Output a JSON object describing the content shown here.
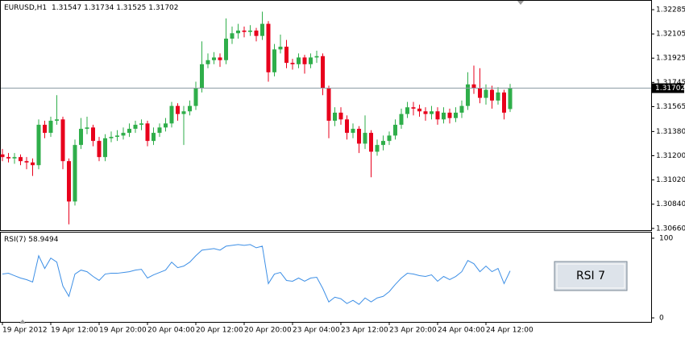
{
  "chart_data": {
    "type": "candlestick",
    "title": "EURUSD,H1",
    "categories": [
      "19 Apr 2012",
      null,
      null,
      null,
      null,
      null,
      null,
      null,
      "19 Apr 12:00",
      null,
      null,
      null,
      null,
      null,
      null,
      null,
      "19 Apr 20:00",
      null,
      null,
      null,
      null,
      null,
      null,
      null,
      "20 Apr 04:00",
      null,
      null,
      null,
      null,
      null,
      null,
      null,
      "20 Apr 12:00",
      null,
      null,
      null,
      null,
      null,
      null,
      null,
      "20 Apr 20:00",
      null,
      null,
      null,
      null,
      null,
      null,
      null,
      "23 Apr 04:00",
      null,
      null,
      null,
      null,
      null,
      null,
      null,
      "23 Apr 12:00",
      null,
      null,
      null,
      null,
      null,
      null,
      null,
      "23 Apr 20:00",
      null,
      null,
      null,
      null,
      null,
      null,
      null,
      "24 Apr 04:00",
      null,
      null,
      null,
      null,
      null,
      null,
      null,
      "24 Apr 12:00",
      null,
      null,
      null,
      null
    ],
    "open": [
      1.3121,
      1.3119,
      1.3118,
      1.3119,
      1.3116,
      1.3115,
      1.3113,
      1.3143,
      1.3137,
      1.3146,
      1.3147,
      1.3116,
      1.3086,
      1.3128,
      1.314,
      1.3141,
      1.3131,
      1.3119,
      1.3133,
      1.3134,
      1.3135,
      1.3137,
      1.314,
      1.3143,
      1.3144,
      1.3131,
      1.3137,
      1.3141,
      1.3144,
      1.3157,
      1.3151,
      1.3153,
      1.3157,
      1.317,
      1.3188,
      1.3191,
      1.3193,
      1.3191,
      1.3207,
      1.3211,
      1.3213,
      1.3212,
      1.3213,
      1.3209,
      1.3218,
      1.3182,
      1.3199,
      1.3201,
      1.3189,
      1.3188,
      1.3193,
      1.3188,
      1.3193,
      1.3194,
      1.317,
      1.3146,
      1.3152,
      1.3147,
      1.3137,
      1.314,
      1.3129,
      1.3137,
      1.3123,
      1.3128,
      1.3131,
      1.3135,
      1.3143,
      1.3151,
      1.3156,
      1.3155,
      1.3153,
      1.3151,
      1.3153,
      1.3147,
      1.3152,
      1.3148,
      1.3152,
      1.3157,
      1.3173,
      1.317,
      1.3163,
      1.3169,
      1.3161,
      1.3167,
      1.31547
    ],
    "high": [
      1.3125,
      1.3122,
      1.3122,
      1.3121,
      1.3119,
      1.3118,
      1.3147,
      1.3146,
      1.3149,
      1.3165,
      1.3149,
      1.3118,
      1.3132,
      1.3148,
      1.3149,
      1.3143,
      1.3134,
      1.3136,
      1.3138,
      1.3139,
      1.3141,
      1.3144,
      1.3146,
      1.3147,
      1.3146,
      1.3141,
      1.3144,
      1.3148,
      1.316,
      1.3159,
      1.3157,
      1.3161,
      1.3175,
      1.3205,
      1.3196,
      1.3197,
      1.3196,
      1.3222,
      1.3216,
      1.3218,
      1.3216,
      1.3217,
      1.3215,
      1.3227,
      1.322,
      1.3203,
      1.321,
      1.3206,
      1.3192,
      1.3196,
      1.3195,
      1.3196,
      1.3198,
      1.3196,
      1.3172,
      1.3156,
      1.3156,
      1.315,
      1.3144,
      1.3142,
      1.315,
      1.3139,
      1.3132,
      1.3135,
      1.3138,
      1.3147,
      1.3155,
      1.316,
      1.316,
      1.3158,
      1.3156,
      1.3157,
      1.3156,
      1.3156,
      1.3155,
      1.3156,
      1.3161,
      1.3182,
      1.3187,
      1.3185,
      1.3173,
      1.3172,
      1.3171,
      1.3169,
      1.31734
    ],
    "low": [
      1.3116,
      1.3115,
      1.3114,
      1.3113,
      1.311,
      1.3105,
      1.311,
      1.3133,
      1.3134,
      1.3143,
      1.311,
      1.3069,
      1.3083,
      1.3125,
      1.3136,
      1.3127,
      1.3116,
      1.3116,
      1.313,
      1.3131,
      1.3132,
      1.3134,
      1.3137,
      1.3139,
      1.3127,
      1.3128,
      1.3134,
      1.3138,
      1.3141,
      1.3146,
      1.3128,
      1.315,
      1.3154,
      1.3167,
      1.3185,
      1.3188,
      1.3186,
      1.3188,
      1.3203,
      1.3207,
      1.3208,
      1.3209,
      1.3205,
      1.3206,
      1.3175,
      1.3179,
      1.3196,
      1.3185,
      1.3184,
      1.3185,
      1.3181,
      1.3185,
      1.3189,
      1.3165,
      1.3133,
      1.3142,
      1.3143,
      1.3132,
      1.3133,
      1.3122,
      1.3125,
      1.3104,
      1.312,
      1.3124,
      1.3128,
      1.3132,
      1.314,
      1.3148,
      1.315,
      1.3149,
      1.3146,
      1.3147,
      1.3143,
      1.3144,
      1.3144,
      1.3145,
      1.3148,
      1.3154,
      1.3166,
      1.3159,
      1.3158,
      1.3155,
      1.3158,
      1.3147,
      1.31525
    ],
    "close": [
      1.3119,
      1.3118,
      1.3119,
      1.3116,
      1.3115,
      1.3113,
      1.3143,
      1.3137,
      1.3146,
      1.3147,
      1.3116,
      1.3086,
      1.3128,
      1.314,
      1.3141,
      1.3131,
      1.3119,
      1.3133,
      1.3134,
      1.3135,
      1.3137,
      1.314,
      1.3143,
      1.3144,
      1.3131,
      1.3137,
      1.3141,
      1.3144,
      1.3157,
      1.3151,
      1.3153,
      1.3157,
      1.317,
      1.3188,
      1.3191,
      1.3193,
      1.3191,
      1.3207,
      1.3211,
      1.3213,
      1.3212,
      1.3213,
      1.3209,
      1.3218,
      1.3182,
      1.3199,
      1.3201,
      1.3189,
      1.3188,
      1.3193,
      1.3188,
      1.3193,
      1.3194,
      1.317,
      1.3146,
      1.3152,
      1.3147,
      1.3137,
      1.314,
      1.3129,
      1.3137,
      1.3123,
      1.3128,
      1.3131,
      1.3135,
      1.3143,
      1.3151,
      1.3156,
      1.3155,
      1.3153,
      1.3151,
      1.3153,
      1.3147,
      1.3152,
      1.3148,
      1.3152,
      1.3157,
      1.3173,
      1.317,
      1.3163,
      1.3169,
      1.3161,
      1.3167,
      1.3152,
      1.31702
    ],
    "up_color": "#2fae4a",
    "down_color": "#e8001c",
    "price_line_color": "#8c9ca4",
    "ylim": [
      1.30647,
      1.32345
    ],
    "yticks": [
      1.32285,
      1.32105,
      1.31925,
      1.31745,
      1.31565,
      {
        "value": 1.3138,
        "label": "1.31380"
      },
      {
        "value": 1.312,
        "label": "1.31200"
      },
      {
        "value": 1.3102,
        "label": "1.31020"
      },
      {
        "value": 1.3084,
        "label": "1.30840"
      },
      {
        "value": 1.3066,
        "label": "1.30660"
      }
    ],
    "indicator": {
      "name": "RSI(7)",
      "color": "#3d8fe6",
      "values": [
        55,
        56,
        53,
        50,
        48,
        45,
        78,
        62,
        75,
        70,
        40,
        27,
        55,
        60,
        58,
        52,
        47,
        55,
        56,
        56,
        57,
        58,
        60,
        61,
        50,
        54,
        57,
        60,
        70,
        63,
        65,
        70,
        78,
        85,
        86,
        87,
        85,
        90,
        91,
        92,
        91,
        92,
        88,
        90,
        43,
        55,
        57,
        47,
        46,
        50,
        46,
        50,
        51,
        37,
        20,
        26,
        24,
        18,
        22,
        17,
        25,
        20,
        25,
        27,
        33,
        42,
        50,
        56,
        55,
        53,
        52,
        54,
        46,
        52,
        48,
        52,
        58,
        72,
        68,
        58,
        65,
        58,
        62,
        43,
        58.9494
      ],
      "ylim": [
        0,
        100
      ],
      "yticks": [
        0,
        100
      ]
    },
    "button": "RSI 7"
  }
}
